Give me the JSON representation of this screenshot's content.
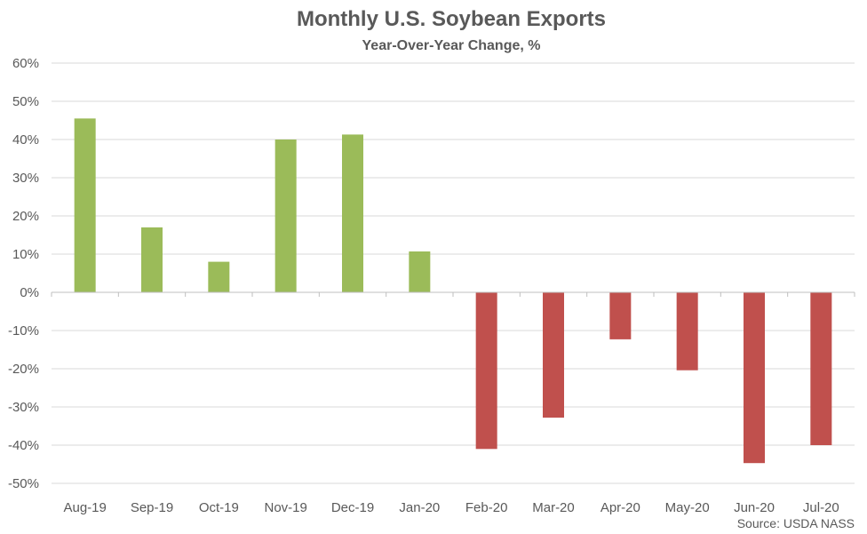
{
  "colors": {
    "positive": "#9bbb59",
    "negative": "#c0504d",
    "grid": "#d9d9d9",
    "axis": "#bfbfbf"
  },
  "chart_data": {
    "type": "bar",
    "title": "Monthly U.S. Soybean Exports",
    "subtitle": "Year-Over-Year Change, %",
    "xlabel": "",
    "ylabel": "",
    "categories": [
      "Aug-19",
      "Sep-19",
      "Oct-19",
      "Nov-19",
      "Dec-19",
      "Jan-20",
      "Feb-20",
      "Mar-20",
      "Apr-20",
      "May-20",
      "Jun-20",
      "Jul-20"
    ],
    "values": [
      45.5,
      17,
      8,
      40,
      41.3,
      10.7,
      -41,
      -32.8,
      -12.3,
      -20.4,
      -44.7,
      -40
    ],
    "ylim": [
      -50,
      60
    ],
    "yticks": [
      60,
      50,
      40,
      30,
      20,
      10,
      0,
      -10,
      -20,
      -30,
      -40,
      -50
    ],
    "ytick_labels": [
      "60%",
      "50%",
      "40%",
      "30%",
      "20%",
      "10%",
      "0%",
      "-10%",
      "-20%",
      "-30%",
      "-40%",
      "-50%"
    ],
    "grid": true,
    "legend": "none",
    "source": "Source: USDA NASS"
  }
}
